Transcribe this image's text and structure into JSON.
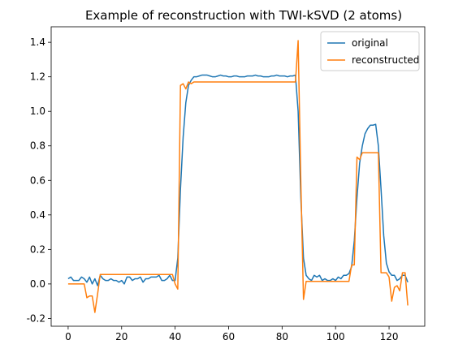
{
  "chart_data": {
    "type": "line",
    "title": "Example of reconstruction with TWI-kSVD (2 atoms)",
    "xlabel": "",
    "ylabel": "",
    "xlim": [
      -6.35,
      133.35
    ],
    "ylim": [
      -0.245,
      1.49
    ],
    "xticks": [
      0,
      20,
      40,
      60,
      80,
      100,
      120
    ],
    "yticks": [
      -0.2,
      0.0,
      0.2,
      0.4,
      0.6,
      0.8,
      1.0,
      1.2,
      1.4
    ],
    "grid": false,
    "legend_position": "top-right",
    "x": [
      0,
      1,
      2,
      3,
      4,
      5,
      6,
      7,
      8,
      9,
      10,
      11,
      12,
      13,
      14,
      15,
      16,
      17,
      18,
      19,
      20,
      21,
      22,
      23,
      24,
      25,
      26,
      27,
      28,
      29,
      30,
      31,
      32,
      33,
      34,
      35,
      36,
      37,
      38,
      39,
      40,
      41,
      42,
      43,
      44,
      45,
      46,
      47,
      48,
      49,
      50,
      51,
      52,
      53,
      54,
      55,
      56,
      57,
      58,
      59,
      60,
      61,
      62,
      63,
      64,
      65,
      66,
      67,
      68,
      69,
      70,
      71,
      72,
      73,
      74,
      75,
      76,
      77,
      78,
      79,
      80,
      81,
      82,
      83,
      84,
      85,
      86,
      87,
      88,
      89,
      90,
      91,
      92,
      93,
      94,
      95,
      96,
      97,
      98,
      99,
      100,
      101,
      102,
      103,
      104,
      105,
      106,
      107,
      108,
      109,
      110,
      111,
      112,
      113,
      114,
      115,
      116,
      117,
      118,
      119,
      120,
      121,
      122,
      123,
      124,
      125,
      126,
      127
    ],
    "series": [
      {
        "name": "original",
        "color": "#1f77b4",
        "values": [
          0.03,
          0.04,
          0.02,
          0.02,
          0.02,
          0.04,
          0.03,
          0.01,
          0.04,
          0.0,
          0.03,
          -0.01,
          0.05,
          0.03,
          0.02,
          0.02,
          0.03,
          0.02,
          0.02,
          0.01,
          0.02,
          0.0,
          0.04,
          0.04,
          0.02,
          0.03,
          0.03,
          0.04,
          0.01,
          0.03,
          0.03,
          0.04,
          0.04,
          0.04,
          0.05,
          0.02,
          0.02,
          0.03,
          0.05,
          0.02,
          0.02,
          0.15,
          0.55,
          0.85,
          1.05,
          1.15,
          1.18,
          1.2,
          1.2,
          1.205,
          1.21,
          1.21,
          1.21,
          1.205,
          1.2,
          1.2,
          1.205,
          1.21,
          1.205,
          1.205,
          1.2,
          1.2,
          1.205,
          1.205,
          1.2,
          1.2,
          1.2,
          1.205,
          1.205,
          1.205,
          1.21,
          1.205,
          1.205,
          1.2,
          1.2,
          1.2,
          1.205,
          1.205,
          1.21,
          1.205,
          1.205,
          1.205,
          1.2,
          1.205,
          1.205,
          1.21,
          1.0,
          0.5,
          0.15,
          0.05,
          0.03,
          0.02,
          0.05,
          0.04,
          0.05,
          0.02,
          0.03,
          0.02,
          0.02,
          0.03,
          0.02,
          0.04,
          0.03,
          0.05,
          0.05,
          0.06,
          0.1,
          0.25,
          0.5,
          0.7,
          0.8,
          0.87,
          0.9,
          0.92,
          0.92,
          0.925,
          0.8,
          0.55,
          0.28,
          0.12,
          0.07,
          0.05,
          0.05,
          0.02,
          0.03,
          0.05,
          0.05,
          0.01
        ]
      },
      {
        "name": "reconstructed",
        "color": "#ff7f0e",
        "values": [
          0.0,
          0.0,
          0.0,
          0.0,
          0.0,
          0.0,
          0.0,
          -0.08,
          -0.07,
          -0.07,
          -0.165,
          -0.06,
          0.055,
          0.055,
          0.055,
          0.055,
          0.055,
          0.055,
          0.055,
          0.055,
          0.055,
          0.055,
          0.055,
          0.055,
          0.055,
          0.055,
          0.055,
          0.055,
          0.055,
          0.055,
          0.055,
          0.055,
          0.055,
          0.055,
          0.055,
          0.055,
          0.055,
          0.055,
          0.055,
          0.055,
          0.0,
          -0.03,
          1.15,
          1.16,
          1.13,
          1.17,
          1.16,
          1.17,
          1.17,
          1.17,
          1.17,
          1.17,
          1.17,
          1.17,
          1.17,
          1.17,
          1.17,
          1.17,
          1.17,
          1.17,
          1.17,
          1.17,
          1.17,
          1.17,
          1.17,
          1.17,
          1.17,
          1.17,
          1.17,
          1.17,
          1.17,
          1.17,
          1.17,
          1.17,
          1.17,
          1.17,
          1.17,
          1.17,
          1.17,
          1.17,
          1.17,
          1.17,
          1.17,
          1.17,
          1.17,
          1.17,
          1.41,
          0.6,
          -0.09,
          0.015,
          0.015,
          0.015,
          0.015,
          0.015,
          0.015,
          0.015,
          0.015,
          0.015,
          0.015,
          0.015,
          0.015,
          0.015,
          0.015,
          0.015,
          0.015,
          0.015,
          0.11,
          0.11,
          0.735,
          0.72,
          0.76,
          0.76,
          0.76,
          0.76,
          0.76,
          0.76,
          0.76,
          0.065,
          0.065,
          0.065,
          0.04,
          -0.1,
          -0.02,
          -0.01,
          -0.04,
          0.065,
          0.065,
          -0.125
        ]
      }
    ]
  }
}
